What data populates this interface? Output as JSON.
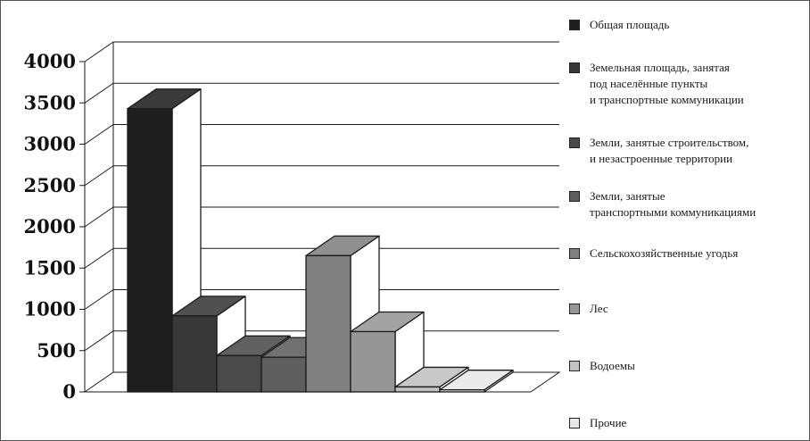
{
  "chart_data": {
    "type": "bar",
    "style": "3d-column",
    "title": "",
    "xlabel": "",
    "ylabel": "",
    "ylim": [
      0,
      4000
    ],
    "y_ticks": [
      "0",
      "500",
      "1000",
      "1500",
      "2000",
      "2500",
      "3000",
      "3500",
      "4000"
    ],
    "grid": true,
    "legend_position": "right",
    "series": [
      {
        "name": "Общая площадь",
        "value": 3430,
        "color": "#1f1f1f"
      },
      {
        "name": "Земельная площадь, занятая\nпод населённые пункты\nи транспортные коммуникации",
        "value": 920,
        "color": "#383838"
      },
      {
        "name": "Земли, занятые строительством,\nи незастроенные территории",
        "value": 440,
        "color": "#4a4a4a"
      },
      {
        "name": "Земли, занятые\nтранспортными коммуникациями",
        "value": 420,
        "color": "#5e5e5e"
      },
      {
        "name": "Сельскохозяйственные угодья",
        "value": 1650,
        "color": "#808080"
      },
      {
        "name": "Лес",
        "value": 730,
        "color": "#969696"
      },
      {
        "name": "Водоемы",
        "value": 60,
        "color": "#c2c2c2"
      },
      {
        "name": "Прочие",
        "value": 25,
        "color": "#e8e8e8"
      }
    ]
  }
}
